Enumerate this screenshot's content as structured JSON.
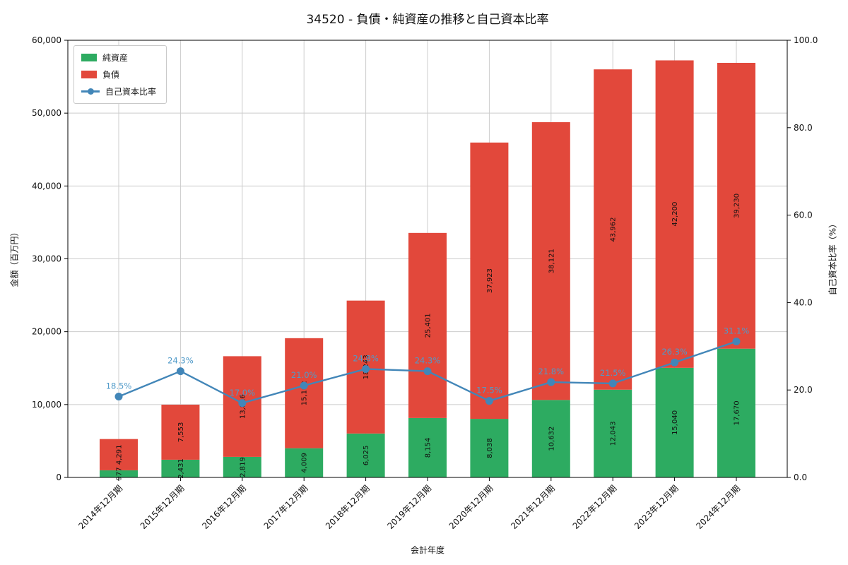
{
  "title": "34520 - 負債・純資産の推移と自己資本比率",
  "legend": {
    "equity": "純資産",
    "debt": "負債",
    "ratio": "自己資本比率"
  },
  "axes": {
    "x_label": "会計年度",
    "y_left_label": "金額（百万円）",
    "y_right_label": "自己資本比率（%）",
    "y_left_ticks": [
      "0",
      "10,000",
      "20,000",
      "30,000",
      "40,000",
      "50,000",
      "60,000"
    ],
    "y_right_ticks": [
      "0.0",
      "20.0",
      "40.0",
      "60.0",
      "80.0",
      "100.0"
    ]
  },
  "colors": {
    "equity": "#2dab61",
    "debt": "#e2483b",
    "ratio": "#4286b8",
    "ratio_label": "#4f9ac9",
    "grid": "#cccccc",
    "spine": "#000000",
    "text": "#111111"
  },
  "chart_data": {
    "type": "stacked-bar+line",
    "title": "34520 - 負債・純資産の推移と自己資本比率",
    "xlabel": "会計年度",
    "ylabel_left": "金額（百万円）",
    "ylabel_right": "自己資本比率（%）",
    "categories": [
      "2014年12月期",
      "2015年12月期",
      "2016年12月期",
      "2017年12月期",
      "2018年12月期",
      "2019年12月期",
      "2020年12月期",
      "2021年12月期",
      "2022年12月期",
      "2023年12月期",
      "2024年12月期"
    ],
    "series": [
      {
        "name": "純資産",
        "type": "bar",
        "axis": "left",
        "values": [
          977,
          2431,
          2819,
          4009,
          6025,
          8154,
          8038,
          10632,
          12043,
          15040,
          17670
        ]
      },
      {
        "name": "負債",
        "type": "bar",
        "axis": "left",
        "values": [
          4291,
          7553,
          13816,
          15102,
          18243,
          25401,
          37923,
          38121,
          43962,
          42200,
          39230
        ]
      },
      {
        "name": "自己資本比率",
        "type": "line",
        "axis": "right",
        "unit": "%",
        "values": [
          18.5,
          24.3,
          17.0,
          21.0,
          24.8,
          24.3,
          17.5,
          21.8,
          21.5,
          26.3,
          31.1
        ]
      }
    ],
    "ylim_left": [
      0,
      60000
    ],
    "ylim_right": [
      0,
      100
    ],
    "grid": true,
    "legend_position": "upper left"
  }
}
